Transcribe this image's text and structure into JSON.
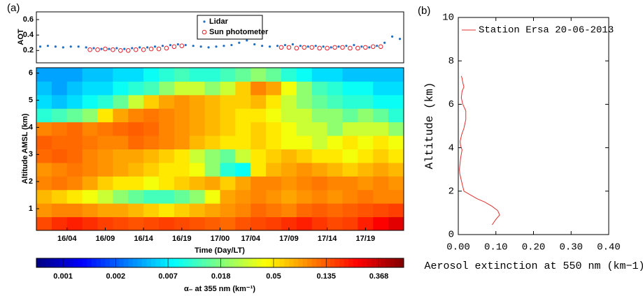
{
  "panel_labels": [
    "(a)",
    "(b)"
  ],
  "chart_data": [
    {
      "type": "scatter",
      "ylabel": "AOT",
      "xlim": [
        0,
        48
      ],
      "ylim": [
        0.04,
        0.7
      ],
      "yticks": [
        0.2,
        0.4,
        0.6
      ],
      "series": [
        {
          "name": "Lidar",
          "color": "#1f6fc5",
          "marker": "dot",
          "x": [
            0.5,
            1.5,
            2.5,
            3.5,
            4.5,
            5.5,
            6.5,
            7.5,
            8.5,
            9.5,
            10.5,
            11.5,
            12.5,
            13.5,
            14.5,
            15.5,
            16.5,
            17.5,
            18.5,
            19.5,
            20.5,
            21.5,
            22.5,
            23.5,
            24.5,
            25.5,
            26.5,
            27.5,
            28.5,
            29.5,
            30.5,
            31.5,
            32.5,
            33.5,
            34.5,
            35.5,
            36.5,
            37.5,
            38.5,
            39.5,
            40.5,
            41.5,
            42.5,
            43.5,
            44.5,
            45.5,
            46.5,
            47.5
          ],
          "y": [
            0.25,
            0.26,
            0.25,
            0.24,
            0.25,
            0.25,
            0.24,
            0.23,
            0.22,
            0.22,
            0.23,
            0.22,
            0.23,
            0.24,
            0.24,
            0.25,
            0.26,
            0.27,
            0.28,
            0.27,
            0.26,
            0.25,
            0.24,
            0.25,
            0.26,
            0.27,
            0.3,
            0.33,
            0.28,
            0.26,
            0.25,
            0.26,
            0.27,
            0.28,
            0.26,
            0.25,
            0.26,
            0.25,
            0.24,
            0.25,
            0.26,
            0.27,
            0.25,
            0.24,
            0.26,
            0.3,
            0.38,
            0.35
          ]
        },
        {
          "name": "Sun  photometer",
          "color": "#e0202a",
          "marker": "circle",
          "x": [
            7,
            8,
            9,
            10,
            11,
            12,
            13,
            14,
            15,
            16,
            17,
            18,
            19,
            32,
            33,
            34,
            35,
            36,
            37,
            38,
            39,
            40,
            41,
            42,
            43,
            44,
            45
          ],
          "y": [
            0.21,
            0.21,
            0.22,
            0.21,
            0.2,
            0.2,
            0.21,
            0.21,
            0.22,
            0.22,
            0.23,
            0.25,
            0.26,
            0.24,
            0.24,
            0.23,
            0.24,
            0.24,
            0.23,
            0.23,
            0.24,
            0.24,
            0.23,
            0.23,
            0.24,
            0.25,
            0.25
          ]
        }
      ]
    },
    {
      "type": "heatmap",
      "ylabel": "Altitude AMSL (km)",
      "xlabel": "Time (Day/LT)",
      "xlim": [
        0,
        48
      ],
      "ylim": [
        0.2,
        6.2
      ],
      "xticks": [
        {
          "value": 4,
          "label": "16/04"
        },
        {
          "value": 9,
          "label": "16/09"
        },
        {
          "value": 14,
          "label": "16/14"
        },
        {
          "value": 19,
          "label": "16/19"
        },
        {
          "value": 24,
          "label": "17/00"
        },
        {
          "value": 28,
          "label": "17/04"
        },
        {
          "value": 33,
          "label": "17/09"
        },
        {
          "value": 38,
          "label": "17/14"
        },
        {
          "value": 43,
          "label": "17/19"
        }
      ],
      "yticks": [
        1,
        2,
        3,
        4,
        5,
        6
      ],
      "x_bins": [
        0,
        2,
        4,
        6,
        8,
        10,
        12,
        14,
        16,
        18,
        20,
        22,
        24,
        26,
        28,
        30,
        32,
        34,
        36,
        38,
        40,
        42,
        44,
        46,
        48
      ],
      "y_bins": [
        0.2,
        0.7,
        1.2,
        1.7,
        2.2,
        2.7,
        3.2,
        3.7,
        4.2,
        4.7,
        5.2,
        5.7,
        6.2
      ],
      "z": [
        [
          0.15,
          0.18,
          0.2,
          0.18,
          0.16,
          0.15,
          0.14,
          0.15,
          0.16,
          0.15,
          0.14,
          0.13,
          0.12,
          0.14,
          0.15,
          0.16,
          0.18,
          0.2,
          0.17,
          0.15,
          0.16,
          0.2,
          0.25,
          0.3
        ],
        [
          0.09,
          0.1,
          0.1,
          0.09,
          0.08,
          0.08,
          0.07,
          0.06,
          0.05,
          0.06,
          0.07,
          0.08,
          0.09,
          0.1,
          0.12,
          0.11,
          0.1,
          0.12,
          0.13,
          0.12,
          0.13,
          0.14,
          0.15,
          0.16
        ],
        [
          0.07,
          0.06,
          0.05,
          0.04,
          0.03,
          0.02,
          0.015,
          0.012,
          0.012,
          0.015,
          0.02,
          0.04,
          0.08,
          0.09,
          0.1,
          0.09,
          0.08,
          0.09,
          0.1,
          0.09,
          0.1,
          0.11,
          0.1,
          0.1
        ],
        [
          0.1,
          0.11,
          0.1,
          0.08,
          0.06,
          0.05,
          0.05,
          0.04,
          0.05,
          0.06,
          0.07,
          0.08,
          0.06,
          0.08,
          0.1,
          0.1,
          0.09,
          0.1,
          0.11,
          0.1,
          0.1,
          0.09,
          0.1,
          0.09
        ],
        [
          0.09,
          0.1,
          0.11,
          0.1,
          0.09,
          0.08,
          0.07,
          0.06,
          0.05,
          0.05,
          0.04,
          0.02,
          0.01,
          0.008,
          0.05,
          0.07,
          0.08,
          0.09,
          0.08,
          0.07,
          0.06,
          0.07,
          0.08,
          0.07
        ],
        [
          0.12,
          0.13,
          0.12,
          0.1,
          0.09,
          0.08,
          0.08,
          0.07,
          0.06,
          0.05,
          0.03,
          0.02,
          0.015,
          0.03,
          0.05,
          0.06,
          0.07,
          0.06,
          0.05,
          0.05,
          0.04,
          0.05,
          0.06,
          0.05
        ],
        [
          0.13,
          0.12,
          0.12,
          0.11,
          0.1,
          0.1,
          0.12,
          0.11,
          0.1,
          0.09,
          0.07,
          0.06,
          0.05,
          0.05,
          0.06,
          0.05,
          0.04,
          0.04,
          0.03,
          0.04,
          0.05,
          0.04,
          0.05,
          0.04
        ],
        [
          0.1,
          0.11,
          0.12,
          0.1,
          0.11,
          0.12,
          0.13,
          0.12,
          0.1,
          0.09,
          0.08,
          0.07,
          0.06,
          0.05,
          0.06,
          0.05,
          0.04,
          0.03,
          0.03,
          0.02,
          0.03,
          0.03,
          0.03,
          0.02
        ],
        [
          0.01,
          0.012,
          0.015,
          0.02,
          0.05,
          0.08,
          0.1,
          0.11,
          0.1,
          0.09,
          0.08,
          0.07,
          0.06,
          0.05,
          0.05,
          0.04,
          0.03,
          0.03,
          0.02,
          0.02,
          0.015,
          0.02,
          0.015,
          0.01
        ],
        [
          0.006,
          0.005,
          0.006,
          0.008,
          0.01,
          0.015,
          0.03,
          0.06,
          0.08,
          0.09,
          0.08,
          0.07,
          0.06,
          0.06,
          0.07,
          0.05,
          0.03,
          0.02,
          0.015,
          0.012,
          0.01,
          0.01,
          0.008,
          0.008
        ],
        [
          0.005,
          0.004,
          0.005,
          0.006,
          0.006,
          0.008,
          0.01,
          0.012,
          0.02,
          0.03,
          0.03,
          0.02,
          0.03,
          0.06,
          0.1,
          0.08,
          0.04,
          0.02,
          0.012,
          0.01,
          0.008,
          0.008,
          0.006,
          0.006
        ],
        [
          0.004,
          0.004,
          0.004,
          0.005,
          0.005,
          0.006,
          0.006,
          0.008,
          0.01,
          0.012,
          0.01,
          0.01,
          0.012,
          0.015,
          0.02,
          0.015,
          0.01,
          0.008,
          0.006,
          0.006,
          0.005,
          0.005,
          0.005,
          0.005
        ]
      ],
      "colorscale": "jet",
      "color_log": true,
      "clim": [
        0.00055,
        0.59
      ],
      "cticks": [
        {
          "value": 0.000912,
          "label": "0.001"
        },
        {
          "value": 0.00248,
          "label": "0.002"
        },
        {
          "value": 0.0067,
          "label": "0.007"
        },
        {
          "value": 0.0183,
          "label": "0.018"
        },
        {
          "value": 0.0498,
          "label": "0.05"
        },
        {
          "value": 0.1353,
          "label": "0.135"
        },
        {
          "value": 0.3679,
          "label": "0.368"
        }
      ],
      "colorbar_label": "α₋ at 355 nm (km⁻¹)"
    },
    {
      "type": "line",
      "xlabel": "Aerosol extinction at 550 nm (km−1)",
      "ylabel": "Altitude (km)",
      "xlim": [
        0,
        0.4
      ],
      "ylim": [
        0,
        10
      ],
      "xticks": [
        {
          "value": 0,
          "label": "0.00"
        },
        {
          "value": 0.1,
          "label": "0.10"
        },
        {
          "value": 0.2,
          "label": "0.20"
        },
        {
          "value": 0.3,
          "label": "0.30"
        },
        {
          "value": 0.4,
          "label": "0.40"
        }
      ],
      "yticks": [
        0,
        2,
        4,
        6,
        8,
        10
      ],
      "series": [
        {
          "name": "Station Ersa 20-06-2013",
          "color": "#e03030",
          "x": [
            0.09,
            0.1,
            0.11,
            0.105,
            0.09,
            0.07,
            0.05,
            0.035,
            0.015,
            0.008,
            0.004,
            0.003,
            0.006,
            0.01,
            0.006,
            0.005,
            0.009,
            0.015,
            0.02,
            0.02,
            0.012,
            0.008,
            0.01,
            0.015,
            0.012,
            0.01,
            0.008
          ],
          "y": [
            0.45,
            0.7,
            0.9,
            1.1,
            1.3,
            1.5,
            1.65,
            1.8,
            2.0,
            2.5,
            2.8,
            3.0,
            3.5,
            3.9,
            4.1,
            4.3,
            4.6,
            4.9,
            5.3,
            5.7,
            6.0,
            6.3,
            6.6,
            6.8,
            7.0,
            7.2,
            7.3
          ]
        }
      ]
    }
  ]
}
